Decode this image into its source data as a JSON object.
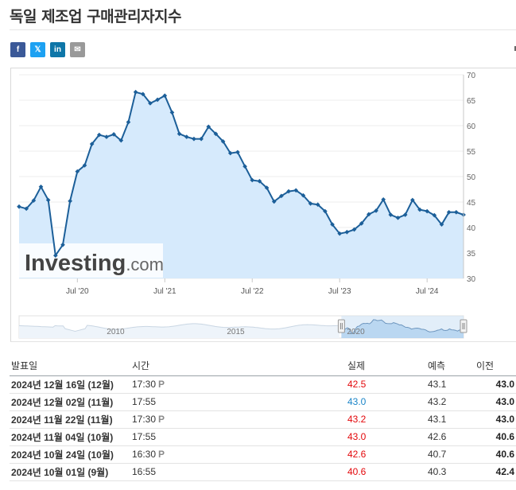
{
  "page": {
    "title": "독일 제조업 구매관리자지수"
  },
  "share": [
    {
      "label": "f",
      "icon": "facebook-icon"
    },
    {
      "label": "𝕏",
      "icon": "x-icon"
    },
    {
      "label": "in",
      "icon": "linkedin-icon"
    },
    {
      "label": "✉",
      "icon": "mail-icon"
    }
  ],
  "chart_data": {
    "type": "area",
    "yaxis_ticks": [
      70,
      65,
      60,
      55,
      50,
      45,
      40,
      35,
      30
    ],
    "ylim": [
      30,
      70
    ],
    "x_tick_labels": [
      "Jul '20",
      "Jul '21",
      "Jul '22",
      "Jul '23",
      "Jul '24"
    ],
    "x_tick_dates": [
      "2020-07",
      "2021-07",
      "2022-07",
      "2023-07",
      "2024-07"
    ],
    "xlim": [
      "2019-11",
      "2024-12"
    ],
    "line_color": "#1c5f99",
    "fill_color": "#d6eafc",
    "watermark": "Investing.com",
    "series": [
      {
        "values": [
          {
            "x": "2019-11",
            "y": 44.1
          },
          {
            "x": "2019-12",
            "y": 43.7
          },
          {
            "x": "2020-01",
            "y": 45.3
          },
          {
            "x": "2020-02",
            "y": 48.0
          },
          {
            "x": "2020-03",
            "y": 45.4
          },
          {
            "x": "2020-04",
            "y": 34.5
          },
          {
            "x": "2020-05",
            "y": 36.6
          },
          {
            "x": "2020-06",
            "y": 45.2
          },
          {
            "x": "2020-07",
            "y": 51.0
          },
          {
            "x": "2020-08",
            "y": 52.2
          },
          {
            "x": "2020-09",
            "y": 56.4
          },
          {
            "x": "2020-10",
            "y": 58.2
          },
          {
            "x": "2020-11",
            "y": 57.8
          },
          {
            "x": "2020-12",
            "y": 58.3
          },
          {
            "x": "2021-01",
            "y": 57.1
          },
          {
            "x": "2021-02",
            "y": 60.7
          },
          {
            "x": "2021-03",
            "y": 66.6
          },
          {
            "x": "2021-04",
            "y": 66.2
          },
          {
            "x": "2021-05",
            "y": 64.4
          },
          {
            "x": "2021-06",
            "y": 65.1
          },
          {
            "x": "2021-07",
            "y": 65.9
          },
          {
            "x": "2021-08",
            "y": 62.6
          },
          {
            "x": "2021-09",
            "y": 58.4
          },
          {
            "x": "2021-10",
            "y": 57.8
          },
          {
            "x": "2021-11",
            "y": 57.4
          },
          {
            "x": "2021-12",
            "y": 57.4
          },
          {
            "x": "2022-01",
            "y": 59.8
          },
          {
            "x": "2022-02",
            "y": 58.4
          },
          {
            "x": "2022-03",
            "y": 56.9
          },
          {
            "x": "2022-04",
            "y": 54.6
          },
          {
            "x": "2022-05",
            "y": 54.8
          },
          {
            "x": "2022-06",
            "y": 52.0
          },
          {
            "x": "2022-07",
            "y": 49.3
          },
          {
            "x": "2022-08",
            "y": 49.1
          },
          {
            "x": "2022-09",
            "y": 47.8
          },
          {
            "x": "2022-10",
            "y": 45.1
          },
          {
            "x": "2022-11",
            "y": 46.2
          },
          {
            "x": "2022-12",
            "y": 47.1
          },
          {
            "x": "2023-01",
            "y": 47.3
          },
          {
            "x": "2023-02",
            "y": 46.3
          },
          {
            "x": "2023-03",
            "y": 44.7
          },
          {
            "x": "2023-04",
            "y": 44.5
          },
          {
            "x": "2023-05",
            "y": 43.2
          },
          {
            "x": "2023-06",
            "y": 40.6
          },
          {
            "x": "2023-07",
            "y": 38.8
          },
          {
            "x": "2023-08",
            "y": 39.1
          },
          {
            "x": "2023-09",
            "y": 39.6
          },
          {
            "x": "2023-10",
            "y": 40.8
          },
          {
            "x": "2023-11",
            "y": 42.6
          },
          {
            "x": "2023-12",
            "y": 43.3
          },
          {
            "x": "2024-01",
            "y": 45.5
          },
          {
            "x": "2024-02",
            "y": 42.5
          },
          {
            "x": "2024-03",
            "y": 41.9
          },
          {
            "x": "2024-04",
            "y": 42.5
          },
          {
            "x": "2024-05",
            "y": 45.4
          },
          {
            "x": "2024-06",
            "y": 43.5
          },
          {
            "x": "2024-07",
            "y": 43.2
          },
          {
            "x": "2024-08",
            "y": 42.4
          },
          {
            "x": "2024-09",
            "y": 40.6
          },
          {
            "x": "2024-10",
            "y": 43.0
          },
          {
            "x": "2024-11",
            "y": 43.0
          },
          {
            "x": "2024-12",
            "y": 42.5
          }
        ]
      }
    ]
  },
  "navigator": {
    "labels": [
      "2010",
      "2015",
      "2020"
    ],
    "label_dates": [
      "2010-01",
      "2015-01",
      "2020-01"
    ],
    "xlim": [
      "2006-06",
      "2024-12"
    ],
    "selection": [
      "2019-11",
      "2024-12"
    ]
  },
  "table": {
    "headers": {
      "date": "발표일",
      "time": "시간",
      "actual": "실제",
      "forecast": "예측",
      "previous": "이전"
    },
    "prelim_mark": "P",
    "rows": [
      {
        "date": "2024년 12월 16일 (12월)",
        "time": "17:30",
        "prelim": true,
        "actual": "42.5",
        "actual_dir": "down",
        "forecast": "43.1",
        "previous": "43.0"
      },
      {
        "date": "2024년 12월 02일 (11월)",
        "time": "17:55",
        "prelim": false,
        "actual": "43.0",
        "actual_dir": "up",
        "forecast": "43.2",
        "previous": "43.0"
      },
      {
        "date": "2024년 11월 22일 (11월)",
        "time": "17:30",
        "prelim": true,
        "actual": "43.2",
        "actual_dir": "down",
        "forecast": "43.1",
        "previous": "43.0"
      },
      {
        "date": "2024년 11월 04일 (10월)",
        "time": "17:55",
        "prelim": false,
        "actual": "43.0",
        "actual_dir": "down",
        "forecast": "42.6",
        "previous": "40.6"
      },
      {
        "date": "2024년 10월 24일 (10월)",
        "time": "16:30",
        "prelim": true,
        "actual": "42.6",
        "actual_dir": "down",
        "forecast": "40.7",
        "previous": "40.6"
      },
      {
        "date": "2024년 10월 01일 (9월)",
        "time": "16:55",
        "prelim": false,
        "actual": "40.6",
        "actual_dir": "down",
        "forecast": "40.3",
        "previous": "42.4"
      }
    ]
  }
}
